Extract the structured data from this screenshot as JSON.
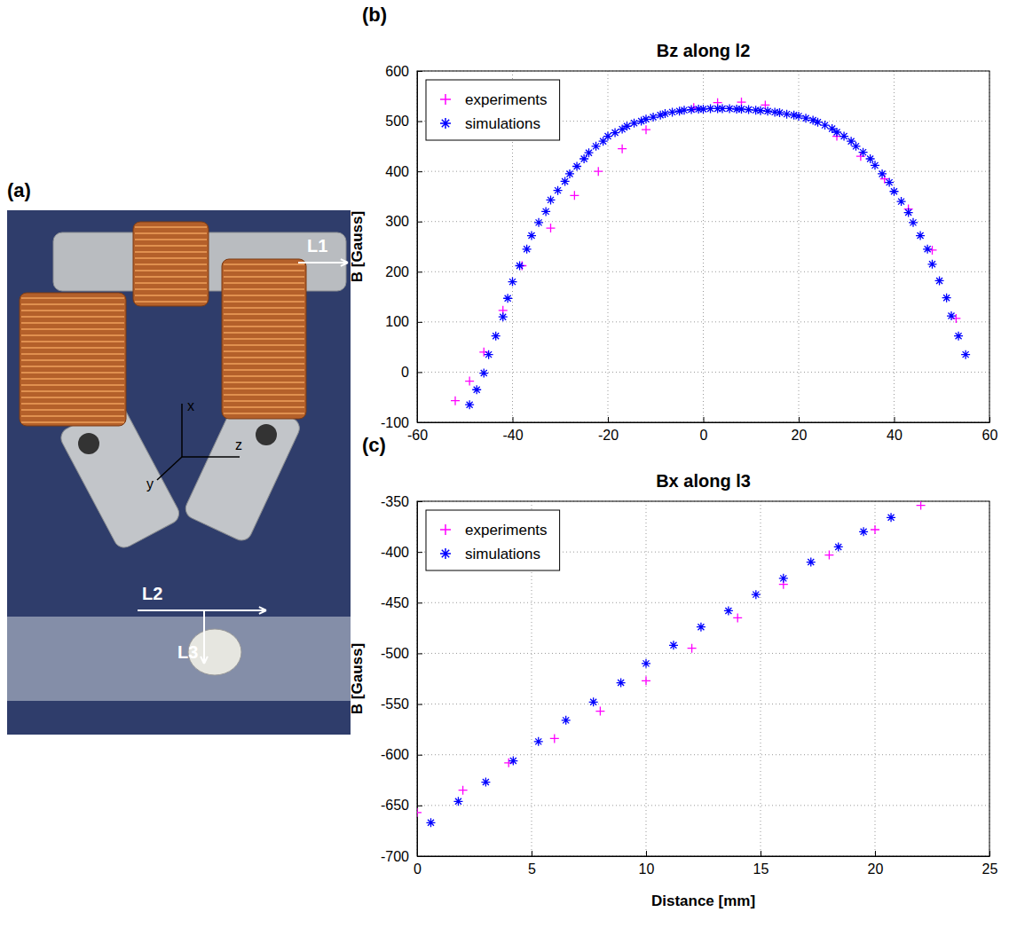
{
  "photo": {
    "panel": "(a)",
    "annotations": [
      "L1",
      "L2",
      "L3"
    ],
    "axes": [
      "x",
      "y",
      "z"
    ]
  },
  "chart_data": [
    {
      "type": "scatter",
      "panel": "(b)",
      "title": "Bz along l2",
      "ylabel": "B [Gauss]",
      "xlim": [
        -60,
        60
      ],
      "xticks": [
        -60,
        -40,
        -20,
        0,
        20,
        40,
        60
      ],
      "ylim": [
        -100,
        600
      ],
      "yticks": [
        -100,
        0,
        100,
        200,
        300,
        400,
        500,
        600
      ],
      "grid": true,
      "legend": "upper left",
      "series": [
        {
          "name": "experiments",
          "color": "#ff00ff",
          "marker": "plus",
          "x": [
            -52,
            -49,
            -46,
            -42,
            -38,
            -32,
            -27,
            -22,
            -17,
            -12,
            -2,
            3,
            8,
            13,
            28,
            33,
            38,
            43,
            48,
            53
          ],
          "values": [
            -57,
            -18,
            40,
            123,
            212,
            287,
            352,
            400,
            445,
            483,
            527,
            537,
            538,
            532,
            470,
            430,
            385,
            325,
            243,
            107
          ]
        },
        {
          "name": "simulations",
          "color": "#0000ff",
          "marker": "asterisk",
          "x": [
            -49,
            -47.5,
            -46,
            -45,
            -43.5,
            -42,
            -41,
            -40,
            -38.5,
            -37,
            -36,
            -34.5,
            -33,
            -32,
            -30.5,
            -29,
            -28,
            -26.5,
            -25,
            -24,
            -22.5,
            -21,
            -20,
            -18.5,
            -17,
            -16,
            -14.5,
            -13,
            -12,
            -10.5,
            -9,
            -8,
            -6.5,
            -5,
            -4,
            -2.5,
            -1,
            0,
            1.5,
            3,
            4,
            5.5,
            7,
            8,
            9.5,
            11,
            12,
            13.5,
            15,
            16,
            17.5,
            19,
            20,
            21.5,
            23,
            24,
            25.5,
            27,
            28,
            29.5,
            31,
            32,
            33.5,
            35,
            36,
            37.5,
            39,
            40,
            41.5,
            43,
            44,
            45.5,
            47,
            48,
            49.5,
            51,
            52,
            53.5,
            55
          ],
          "values": [
            -65,
            -35,
            -2,
            35,
            72,
            110,
            147,
            180,
            212,
            245,
            272,
            298,
            320,
            343,
            362,
            380,
            395,
            410,
            425,
            437,
            450,
            460,
            470,
            477,
            484,
            490,
            496,
            500,
            504,
            508,
            512,
            515,
            518,
            520,
            522,
            523,
            524,
            524,
            525,
            525,
            525,
            525,
            524,
            524,
            523,
            522,
            521,
            520,
            518,
            517,
            514,
            512,
            510,
            506,
            502,
            498,
            492,
            485,
            478,
            470,
            460,
            450,
            438,
            425,
            412,
            395,
            378,
            360,
            340,
            318,
            298,
            272,
            245,
            215,
            182,
            148,
            112,
            72,
            35
          ]
        }
      ]
    },
    {
      "type": "scatter",
      "panel": "(c)",
      "title": "Bx along l3",
      "xlabel": "Distance [mm]",
      "ylabel": "B [Gauss]",
      "xlim": [
        0,
        25
      ],
      "xticks": [
        0,
        5,
        10,
        15,
        20,
        25
      ],
      "ylim": [
        -700,
        -350
      ],
      "yticks": [
        -700,
        -650,
        -600,
        -550,
        -500,
        -450,
        -400,
        -350
      ],
      "grid": true,
      "legend": "upper left",
      "series": [
        {
          "name": "experiments",
          "color": "#ff00ff",
          "marker": "plus",
          "x": [
            0,
            2,
            4,
            6,
            8,
            10,
            12,
            14,
            16,
            18,
            20,
            22
          ],
          "values": [
            -657,
            -635,
            -608,
            -584,
            -557,
            -527,
            -495,
            -465,
            -432,
            -403,
            -378,
            -354
          ]
        },
        {
          "name": "simulations",
          "color": "#0000ff",
          "marker": "asterisk",
          "x": [
            0.6,
            1.8,
            3,
            4.2,
            5.3,
            6.5,
            7.7,
            8.9,
            10,
            11.2,
            12.4,
            13.6,
            14.8,
            16,
            17.2,
            18.4,
            19.5,
            20.7
          ],
          "values": [
            -667,
            -646,
            -627,
            -606,
            -587,
            -566,
            -548,
            -529,
            -510,
            -492,
            -474,
            -458,
            -442,
            -426,
            -410,
            -395,
            -380,
            -366
          ]
        }
      ]
    }
  ]
}
